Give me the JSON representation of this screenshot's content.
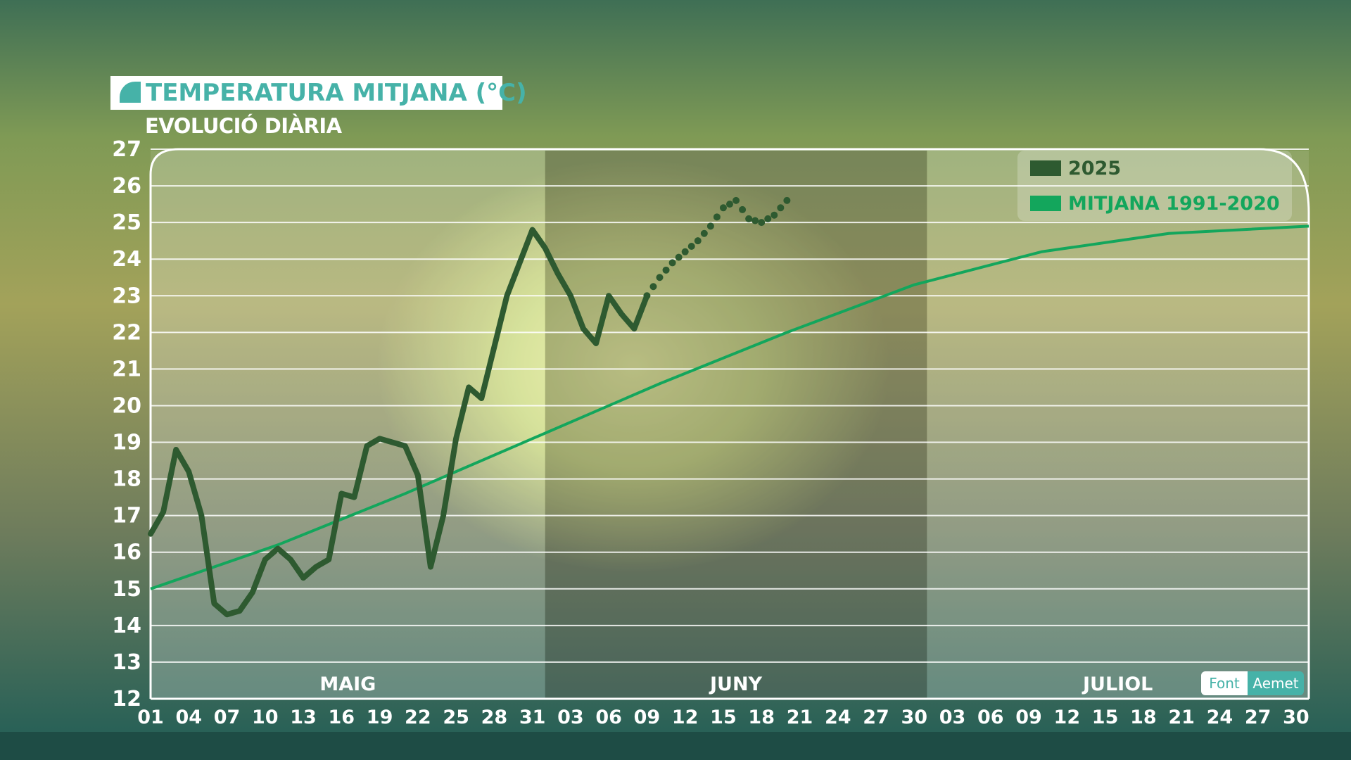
{
  "title": "TEMPERATURA MITJANA (°C)",
  "subtitle": "EVOLUCIÓ DIÀRIA",
  "source": {
    "label": "Font",
    "value": "Aemet"
  },
  "colors": {
    "series_2025": "#2e5a30",
    "series_mean": "#13a65c",
    "title_accent": "#46b2a8"
  },
  "chart_data": {
    "type": "line",
    "ylim": [
      12,
      27
    ],
    "yticks": [
      12,
      13,
      14,
      15,
      16,
      17,
      18,
      19,
      20,
      21,
      22,
      23,
      24,
      25,
      26,
      27
    ],
    "xlim": [
      "2025-05-01",
      "2025-07-31"
    ],
    "xticks": [
      "2025-05-01",
      "2025-05-04",
      "2025-05-07",
      "2025-05-10",
      "2025-05-13",
      "2025-05-16",
      "2025-05-19",
      "2025-05-22",
      "2025-05-25",
      "2025-05-28",
      "2025-05-31",
      "2025-06-03",
      "2025-06-06",
      "2025-06-09",
      "2025-06-12",
      "2025-06-15",
      "2025-06-18",
      "2025-06-21",
      "2025-06-24",
      "2025-06-27",
      "2025-06-30",
      "2025-07-03",
      "2025-07-06",
      "2025-07-09",
      "2025-07-12",
      "2025-07-15",
      "2025-07-18",
      "2025-07-21",
      "2025-07-24",
      "2025-07-27",
      "2025-07-30"
    ],
    "xtick_labels": [
      "01",
      "04",
      "07",
      "10",
      "13",
      "16",
      "19",
      "22",
      "25",
      "28",
      "31",
      "03",
      "06",
      "09",
      "12",
      "15",
      "18",
      "21",
      "24",
      "27",
      "30",
      "03",
      "06",
      "09",
      "12",
      "15",
      "18",
      "21",
      "24",
      "27",
      "30"
    ],
    "months": [
      {
        "label": "MAIG",
        "start": "2025-05-01",
        "end": "2025-06-01"
      },
      {
        "label": "JUNY",
        "start": "2025-06-01",
        "end": "2025-07-01"
      },
      {
        "label": "JULIOL",
        "start": "2025-07-01",
        "end": "2025-08-01"
      }
    ],
    "grid": true,
    "legend": "top-right",
    "series": [
      {
        "name": "2025",
        "style": "solid",
        "x": [
          "2025-05-01",
          "2025-05-02",
          "2025-05-03",
          "2025-05-04",
          "2025-05-05",
          "2025-05-06",
          "2025-05-07",
          "2025-05-08",
          "2025-05-09",
          "2025-05-10",
          "2025-05-11",
          "2025-05-12",
          "2025-05-13",
          "2025-05-14",
          "2025-05-15",
          "2025-05-16",
          "2025-05-17",
          "2025-05-18",
          "2025-05-19",
          "2025-05-20",
          "2025-05-21",
          "2025-05-22",
          "2025-05-23",
          "2025-05-24",
          "2025-05-25",
          "2025-05-26",
          "2025-05-27",
          "2025-05-28",
          "2025-05-29",
          "2025-05-30",
          "2025-05-31",
          "2025-06-01",
          "2025-06-02",
          "2025-06-03",
          "2025-06-04",
          "2025-06-05",
          "2025-06-06",
          "2025-06-07",
          "2025-06-08",
          "2025-06-09"
        ],
        "values": [
          16.5,
          17.1,
          18.8,
          18.2,
          17.0,
          14.6,
          14.3,
          14.4,
          14.9,
          15.8,
          16.1,
          15.8,
          15.3,
          15.6,
          15.8,
          17.6,
          17.5,
          18.9,
          19.1,
          19.0,
          18.9,
          18.1,
          15.6,
          17.0,
          19.1,
          20.5,
          20.2,
          21.6,
          23.0,
          23.9,
          24.8,
          24.3,
          23.6,
          23.0,
          22.1,
          21.7,
          23.0,
          22.5,
          22.1,
          23.0
        ]
      },
      {
        "name": "",
        "style": "dotted",
        "x": [
          "2025-06-09",
          "2025-06-10",
          "2025-06-11",
          "2025-06-12",
          "2025-06-13",
          "2025-06-14",
          "2025-06-15",
          "2025-06-16",
          "2025-06-17",
          "2025-06-18",
          "2025-06-19",
          "2025-06-20"
        ],
        "values": [
          23.0,
          23.5,
          23.9,
          24.2,
          24.5,
          24.9,
          25.4,
          25.6,
          25.1,
          25.0,
          25.2,
          25.6
        ]
      },
      {
        "name": "MITJANA 1991-2020",
        "style": "solid",
        "x": [
          "2025-05-01",
          "2025-05-11",
          "2025-05-21",
          "2025-05-31",
          "2025-06-10",
          "2025-06-20",
          "2025-06-30",
          "2025-07-10",
          "2025-07-20",
          "2025-07-31"
        ],
        "values": [
          15.0,
          16.2,
          17.6,
          19.1,
          20.6,
          22.0,
          23.3,
          24.2,
          24.7,
          24.9
        ]
      }
    ]
  }
}
